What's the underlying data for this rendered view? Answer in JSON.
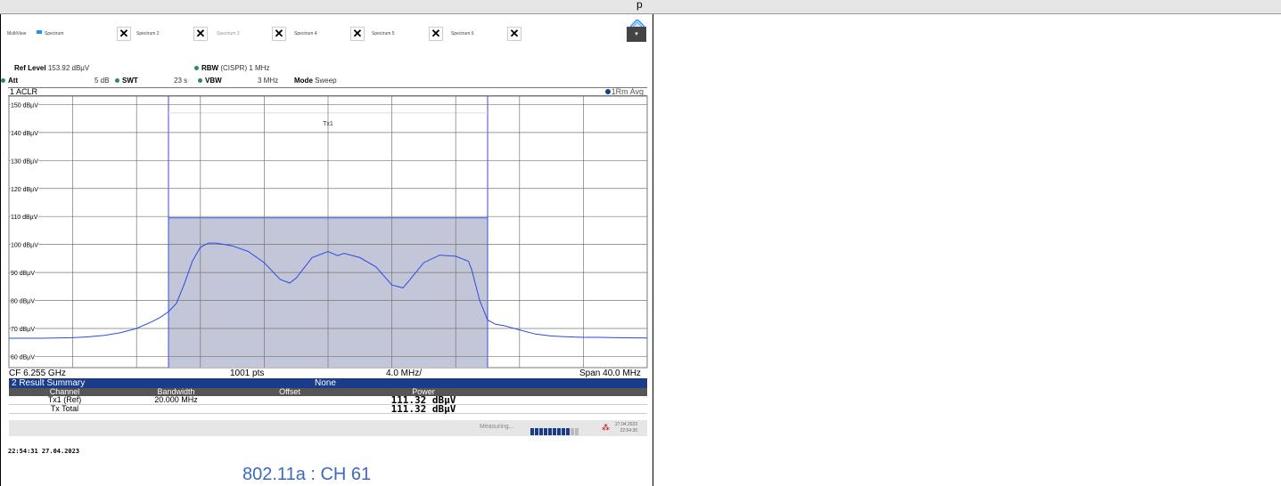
{
  "window": {
    "title_dot": "p"
  },
  "tabs": [
    {
      "label": "MultiView",
      "dim": false
    },
    {
      "label": "Spectrum",
      "dim": false
    },
    {
      "label": "Spectrum 2",
      "dim": false
    },
    {
      "label": "Spectrum 3",
      "dim": true
    },
    {
      "label": "Spectrum 4",
      "dim": false
    },
    {
      "label": "Spectrum 5",
      "dim": false
    },
    {
      "label": "Spectrum 6",
      "dim": false
    }
  ],
  "tab_dropdown": "▾",
  "header": {
    "ref_level_label": "Ref Level",
    "ref_level_value": "153.92 dBµV",
    "rbw_label": "RBW",
    "rbw_value": "(CISPR) 1 MHz",
    "att_label": "Att",
    "att_value": "5 dB",
    "swt_label": "SWT",
    "swt_value": "23 s",
    "vbw_label": "VBW",
    "vbw_value": "3 MHz",
    "mode_label": "Mode",
    "mode_value": "Sweep"
  },
  "trace_window": {
    "title": "1 ACLR",
    "trace_label": "1Rm Avg"
  },
  "chart_data": {
    "type": "line",
    "y_ticks": [
      "150 dBµV",
      "140 dBµV",
      "130 dBµV",
      "120 dBµV",
      "110 dBµV",
      "100 dBµV",
      "90 dBµV",
      "80 dBµV",
      "70 dBµV",
      "60 dBµV"
    ],
    "ylim": [
      56,
      153
    ],
    "xlim": [
      6235,
      6275
    ],
    "x_unit": "MHz",
    "channel_label": "Tx1",
    "channel_bar": {
      "x_start": 6245,
      "x_end": 6265,
      "level": 109.5
    },
    "grid": true,
    "series": [
      {
        "x": [
          6235,
          6237,
          6239,
          6240,
          6241,
          6242,
          6243,
          6244,
          6244.5,
          6245,
          6245.5,
          6246,
          6246.5,
          6247,
          6247.5,
          6248,
          6249,
          6250,
          6251,
          6252,
          6252.6,
          6253,
          6254,
          6255,
          6255.6,
          6256,
          6257,
          6258,
          6259,
          6259.7,
          6260,
          6261,
          6262,
          6263,
          6263.8,
          6264,
          6264.5,
          6265,
          6265.5,
          6266,
          6267,
          6268,
          6269,
          6270,
          6271,
          6272,
          6273,
          6275
        ],
        "values": [
          66.5,
          66.5,
          66.7,
          67,
          67.5,
          68.5,
          70,
          72.5,
          74,
          76,
          79,
          86,
          94,
          99,
          100.5,
          100.5,
          99.5,
          97.5,
          93.5,
          87.5,
          86.2,
          88,
          95.3,
          97.5,
          96,
          96.8,
          95.3,
          92,
          85.5,
          84.5,
          86.5,
          93.5,
          96.2,
          95.8,
          94,
          91,
          80,
          73,
          71.5,
          71,
          69.5,
          68,
          67.3,
          67,
          66.8,
          66.8,
          66.7,
          66.6
        ]
      }
    ],
    "footer": {
      "center_freq": "CF 6.255 GHz",
      "points": "1001 pts",
      "per_div": "4.0 MHz/",
      "span": "Span 40.0 MHz"
    }
  },
  "result_summary": {
    "title": "2 Result Summary",
    "subtitle": "None",
    "columns": [
      "Channel",
      "Bandwidth",
      "Offset",
      "Power"
    ],
    "rows": [
      {
        "channel": "Tx1 (Ref)",
        "bandwidth": "20.000 MHz",
        "offset": "",
        "power": "111.32 dBµV"
      },
      {
        "channel": "Tx Total",
        "bandwidth": "",
        "offset": "",
        "power": "111.32 dBµV"
      }
    ]
  },
  "status": {
    "measuring": "Measuring...",
    "progress_fraction": 0.85,
    "date": "27.04.2023",
    "time": "22:54:30"
  },
  "timestamp": "22:54:31  27.04.2023",
  "caption": "802.11a : CH 61"
}
